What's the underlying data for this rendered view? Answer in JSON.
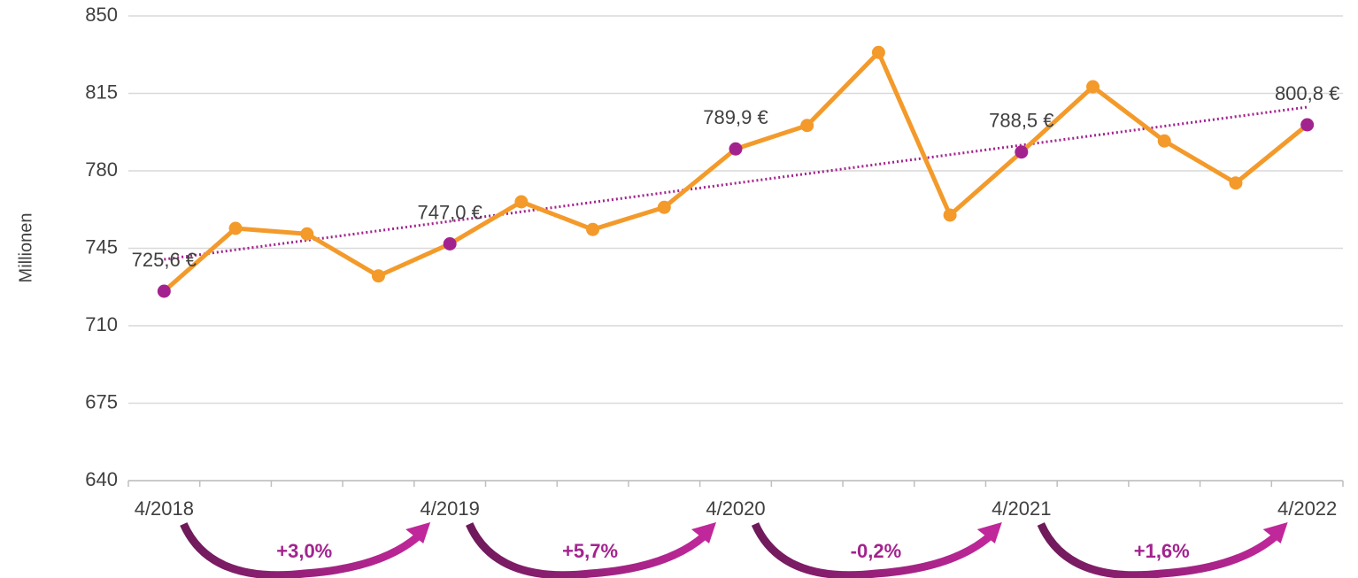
{
  "chart_data": {
    "type": "line",
    "y_label": "Millionen",
    "categories": [
      "4/2018",
      null,
      null,
      null,
      "4/2019",
      null,
      null,
      null,
      "4/2020",
      null,
      null,
      null,
      "4/2021",
      null,
      null,
      null,
      "4/2022"
    ],
    "series": [
      {
        "color": "#f39a2b",
        "label_point_color": "#a3238e",
        "values": [
          725.6,
          754,
          751.5,
          732.5,
          747.0,
          766,
          753.5,
          763.5,
          789.9,
          800.5,
          833.5,
          760,
          788.5,
          818,
          793.5,
          774.5,
          800.8
        ],
        "value_labels": [
          "725,6 €",
          null,
          null,
          null,
          "747,0 €",
          null,
          null,
          null,
          "789,9 €",
          null,
          null,
          null,
          "788,5 €",
          null,
          null,
          null,
          "800,8 €"
        ]
      }
    ],
    "trendline": {
      "color": "#a3238e",
      "values": [
        740,
        808.8
      ]
    },
    "annotations": [
      "+3,0%",
      "+5,7%",
      "-0,2%",
      "+1,6%"
    ],
    "ylim": [
      640,
      850
    ],
    "yticks": [
      640,
      675,
      710,
      745,
      780,
      815,
      850
    ],
    "grid": true
  }
}
